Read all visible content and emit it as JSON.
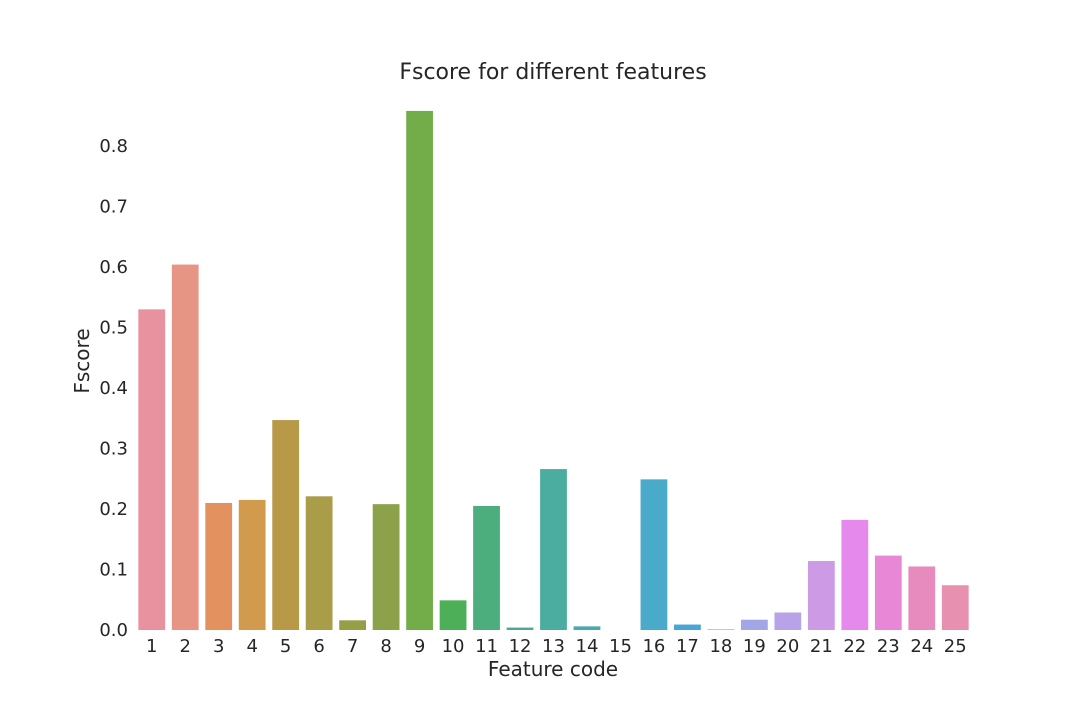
{
  "chart_data": {
    "type": "bar",
    "title": "Fscore for different features",
    "xlabel": "Feature code",
    "ylabel": "Fscore",
    "categories": [
      "1",
      "2",
      "3",
      "4",
      "5",
      "6",
      "7",
      "8",
      "9",
      "10",
      "11",
      "12",
      "13",
      "14",
      "15",
      "16",
      "17",
      "18",
      "19",
      "20",
      "21",
      "22",
      "23",
      "24",
      "25"
    ],
    "values": [
      0.53,
      0.604,
      0.21,
      0.215,
      0.347,
      0.221,
      0.016,
      0.208,
      0.858,
      0.049,
      0.205,
      0.004,
      0.266,
      0.006,
      0.0,
      0.249,
      0.009,
      0.001,
      0.017,
      0.029,
      0.114,
      0.182,
      0.123,
      0.105,
      0.074
    ],
    "colors": [
      "#e8919f",
      "#e69584",
      "#e3915e",
      "#d29a4c",
      "#b89947",
      "#a99d4a",
      "#969f48",
      "#8ba14a",
      "#72ad4a",
      "#4daf57",
      "#4cae7c",
      "#4aaa93",
      "#4aad9f",
      "#4aa9ad",
      "#4aaaba",
      "#4aaac9",
      "#49a5d5",
      "#78a8e2",
      "#a2a5e6",
      "#b9a3e8",
      "#cd9ae6",
      "#e589ec",
      "#e887d5",
      "#e78abd",
      "#e890af"
    ],
    "yticks": [
      "0.0",
      "0.1",
      "0.2",
      "0.3",
      "0.4",
      "0.5",
      "0.6",
      "0.7",
      "0.8"
    ],
    "ylim": [
      0,
      0.86
    ],
    "grid": false
  }
}
